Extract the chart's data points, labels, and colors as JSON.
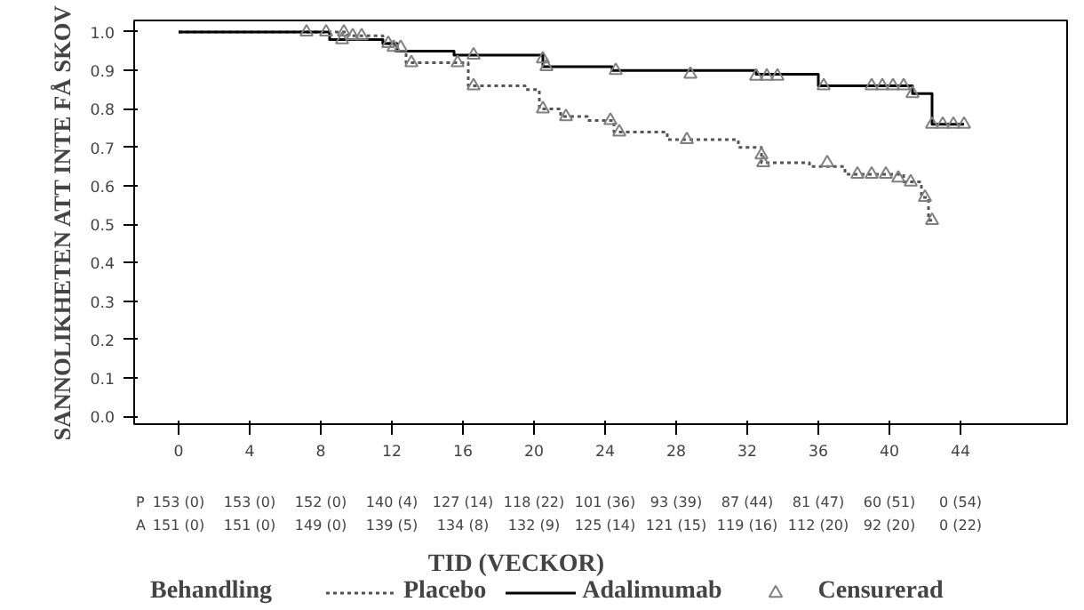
{
  "chart_data": {
    "type": "step",
    "ylabel": "SANNOLIKHETEN ATT INTE FÅ SKOV",
    "xlabel": "TID (VECKOR)",
    "legend_title": "Behandling",
    "legend": "bottom",
    "grid": false,
    "xlim": [
      -2.5,
      50
    ],
    "ylim": [
      -0.02,
      1.03
    ],
    "xticks": [
      0,
      4,
      8,
      12,
      16,
      20,
      24,
      28,
      32,
      36,
      40,
      44
    ],
    "yticks": [
      {
        "value": 0,
        "label": "0.0"
      },
      {
        "value": 0.1,
        "label": "0.1"
      },
      {
        "value": 0.2,
        "label": "0.2"
      },
      {
        "value": 0.3,
        "label": "0.3"
      },
      {
        "value": 0.4,
        "label": "0.4"
      },
      {
        "value": 0.5,
        "label": "0.5"
      },
      {
        "value": 0.6,
        "label": "0.6"
      },
      {
        "value": 0.7,
        "label": "0.7"
      },
      {
        "value": 0.8,
        "label": "0.8"
      },
      {
        "value": 0.9,
        "label": "0.9"
      },
      {
        "value": 1.0,
        "label": "1.0"
      }
    ],
    "series": [
      {
        "name": "Placebo",
        "color": "#555555",
        "line_style": "dotted",
        "marker": "none",
        "x": [
          0,
          9.5,
          11.5,
          12.2,
          12.8,
          16.3,
          19.5,
          20.3,
          21.5,
          23,
          24.5,
          27.5,
          31.5,
          32.8,
          35.5,
          37.5,
          40.8,
          41.8,
          42.2,
          42.4
        ],
        "values": [
          1.0,
          0.99,
          0.97,
          0.95,
          0.92,
          0.86,
          0.85,
          0.8,
          0.78,
          0.77,
          0.74,
          0.72,
          0.7,
          0.66,
          0.65,
          0.63,
          0.61,
          0.57,
          0.51,
          0.51
        ]
      },
      {
        "name": "Adalimumab",
        "color": "#000000",
        "line_style": "solid",
        "marker": "none",
        "x": [
          0,
          8.5,
          11.5,
          12.3,
          15.5,
          20.5,
          24.4,
          32.5,
          36,
          41.3,
          42.4,
          44.2
        ],
        "values": [
          1.0,
          0.98,
          0.97,
          0.95,
          0.94,
          0.91,
          0.9,
          0.89,
          0.86,
          0.84,
          0.76,
          0.76
        ]
      },
      {
        "name": "Censurerad",
        "type": "scatter",
        "marker": "triangle",
        "color": "#808080",
        "x": [
          7.2,
          8.3,
          9.3,
          9.8,
          10.3,
          11.8,
          12.5,
          13.1,
          15.7,
          16.6,
          20.5,
          21.8,
          24.3,
          24.8,
          28.6,
          32.8,
          32.9,
          36.5,
          38.2,
          39,
          39.8,
          40.5,
          41.2,
          42,
          42.4,
          9.2,
          12.1,
          16.6,
          20.5,
          20.7,
          24.6,
          28.8,
          32.5,
          33.1,
          33.7,
          36.3,
          39,
          39.6,
          40.2,
          40.8,
          41.3,
          42.4,
          43,
          43.6,
          44.2
        ],
        "values": [
          1.0,
          1.0,
          1.0,
          0.99,
          0.99,
          0.97,
          0.96,
          0.92,
          0.92,
          0.86,
          0.8,
          0.78,
          0.77,
          0.74,
          0.72,
          0.68,
          0.66,
          0.66,
          0.63,
          0.63,
          0.63,
          0.62,
          0.61,
          0.57,
          0.51,
          0.98,
          0.96,
          0.94,
          0.93,
          0.91,
          0.9,
          0.89,
          0.885,
          0.885,
          0.885,
          0.86,
          0.86,
          0.86,
          0.86,
          0.86,
          0.84,
          0.76,
          0.76,
          0.76,
          0.76
        ]
      }
    ],
    "annotations": [
      "P",
      "153 (0)",
      "153 (0)",
      "152 (0)",
      "140 (4)",
      "127 (14)",
      "118 (22)",
      "101 (36)",
      "93 (39)",
      "87 (44)",
      "81 (47)",
      "60 (51)",
      "0 (54)",
      "A",
      "151 (0)",
      "151 (0)",
      "149 (0)",
      "139 (5)",
      "134 (8)",
      "132 (9)",
      "125 (14)",
      "121 (15)",
      "119 (16)",
      "112 (20)",
      "92 (20)",
      "0 (22)"
    ]
  }
}
